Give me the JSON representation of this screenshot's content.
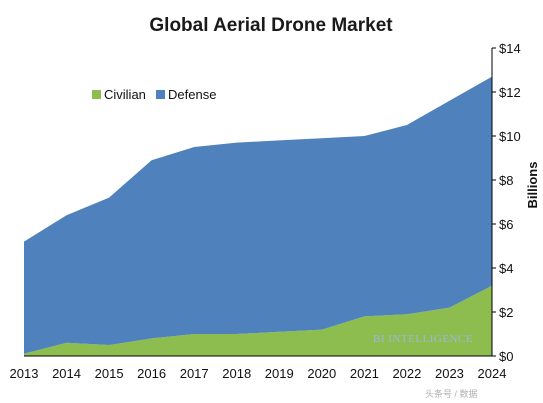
{
  "chart_data": {
    "type": "area",
    "stacked": true,
    "title": "Global Aerial Drone Market",
    "xlabel": "",
    "ylabel": "Billions",
    "ylim": [
      0,
      14
    ],
    "y_ticks": [
      "$0",
      "$2",
      "$4",
      "$6",
      "$8",
      "$10",
      "$12",
      "$14"
    ],
    "y_tick_values": [
      0,
      2,
      4,
      6,
      8,
      10,
      12,
      14
    ],
    "y_axis_position": "right",
    "grid": false,
    "legend_position": "top-left",
    "categories": [
      "2013",
      "2014",
      "2015",
      "2016",
      "2017",
      "2018",
      "2019",
      "2020",
      "2021",
      "2022",
      "2023",
      "2024"
    ],
    "series": [
      {
        "name": "Civilian",
        "color": "#8cbd4e",
        "values": [
          0.1,
          0.6,
          0.5,
          0.8,
          1.0,
          1.0,
          1.1,
          1.2,
          1.8,
          1.9,
          2.2,
          3.2
        ]
      },
      {
        "name": "Defense",
        "color": "#4f81bd",
        "values": [
          5.1,
          5.8,
          6.7,
          8.1,
          8.5,
          8.7,
          8.7,
          8.7,
          8.2,
          8.6,
          9.4,
          9.5
        ]
      }
    ]
  },
  "watermark": "BI INTELLIGENCE",
  "source_text": "头条号 / 数据"
}
